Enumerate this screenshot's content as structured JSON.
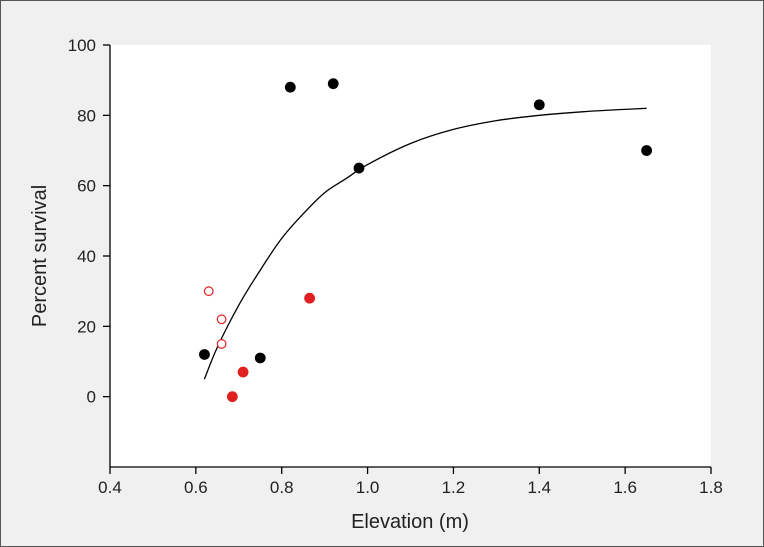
{
  "chart_data": {
    "type": "scatter",
    "title": "",
    "xlabel": "Elevation (m)",
    "ylabel": "Percent survival",
    "xlim": [
      0.4,
      1.8
    ],
    "ylim": [
      -20,
      100
    ],
    "xticks": [
      "0.4",
      "0.6",
      "0.8",
      "1.0",
      "1.2",
      "1.4",
      "1.6",
      "1.8"
    ],
    "yticks": [
      "0",
      "20",
      "40",
      "60",
      "80",
      "100"
    ],
    "grid": false,
    "series": [
      {
        "marker": "filled",
        "color": "#000000",
        "points": [
          {
            "x": 0.62,
            "y": 12
          },
          {
            "x": 0.75,
            "y": 11
          },
          {
            "x": 0.82,
            "y": 88
          },
          {
            "x": 0.92,
            "y": 89
          },
          {
            "x": 0.98,
            "y": 65
          },
          {
            "x": 1.4,
            "y": 83
          },
          {
            "x": 1.65,
            "y": 70
          }
        ]
      },
      {
        "marker": "filled",
        "color": "#e02020",
        "points": [
          {
            "x": 0.685,
            "y": 0
          },
          {
            "x": 0.71,
            "y": 7
          },
          {
            "x": 0.865,
            "y": 28
          }
        ]
      },
      {
        "marker": "open",
        "color": "#e02020",
        "points": [
          {
            "x": 0.63,
            "y": 30
          },
          {
            "x": 0.66,
            "y": 22
          },
          {
            "x": 0.66,
            "y": 15
          }
        ]
      }
    ],
    "fit_curve": [
      {
        "x": 0.62,
        "y": 5
      },
      {
        "x": 0.65,
        "y": 14
      },
      {
        "x": 0.7,
        "y": 26
      },
      {
        "x": 0.75,
        "y": 36
      },
      {
        "x": 0.8,
        "y": 45
      },
      {
        "x": 0.85,
        "y": 52
      },
      {
        "x": 0.9,
        "y": 58
      },
      {
        "x": 0.95,
        "y": 62
      },
      {
        "x": 1.0,
        "y": 66
      },
      {
        "x": 1.1,
        "y": 72
      },
      {
        "x": 1.2,
        "y": 76
      },
      {
        "x": 1.3,
        "y": 78.5
      },
      {
        "x": 1.4,
        "y": 80
      },
      {
        "x": 1.5,
        "y": 81
      },
      {
        "x": 1.6,
        "y": 81.7
      },
      {
        "x": 1.65,
        "y": 82
      }
    ]
  }
}
